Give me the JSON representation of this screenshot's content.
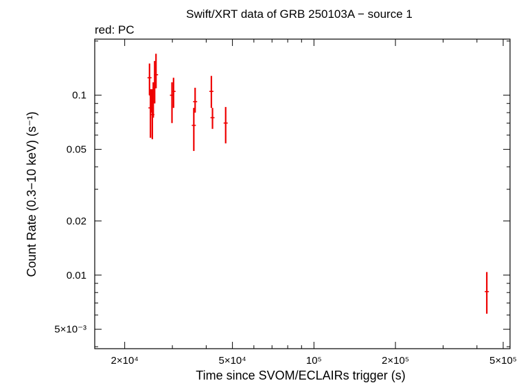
{
  "chart_data": {
    "type": "scatter",
    "title": "Swift/XRT data of GRB 250103A − source 1",
    "subtitle": "red: PC",
    "xlabel": "Time since SVOM/ECLAIRs trigger (s)",
    "ylabel": "Count Rate (0.3−10 keV) (s⁻¹)",
    "xscale": "log",
    "yscale": "log",
    "xlim": [
      15500,
      530000
    ],
    "ylim": [
      0.0039,
      0.205
    ],
    "grid": false,
    "legend": "none",
    "series_color": "#ee0000",
    "x_ticks": [
      {
        "value": 20000,
        "label": "2×10⁴"
      },
      {
        "value": 50000,
        "label": "5×10⁴"
      },
      {
        "value": 100000,
        "label": "10⁵"
      },
      {
        "value": 200000,
        "label": "2×10⁵"
      },
      {
        "value": 500000,
        "label": "5×10⁵"
      }
    ],
    "y_ticks": [
      {
        "value": 0.005,
        "label": "5×10⁻³"
      },
      {
        "value": 0.01,
        "label": "0.01"
      },
      {
        "value": 0.02,
        "label": "0.02"
      },
      {
        "value": 0.05,
        "label": "0.05"
      },
      {
        "value": 0.1,
        "label": "0.1"
      }
    ],
    "points": [
      {
        "x": 24700,
        "y": 0.125,
        "ylo": 0.1,
        "yhi": 0.15
      },
      {
        "x": 24900,
        "y": 0.085,
        "ylo": 0.058,
        "yhi": 0.108
      },
      {
        "x": 25100,
        "y": 0.1,
        "ylo": 0.08,
        "yhi": 0.108
      },
      {
        "x": 25300,
        "y": 0.078,
        "ylo": 0.057,
        "yhi": 0.108
      },
      {
        "x": 25500,
        "y": 0.092,
        "ylo": 0.075,
        "yhi": 0.118
      },
      {
        "x": 25800,
        "y": 0.11,
        "ylo": 0.09,
        "yhi": 0.155
      },
      {
        "x": 26100,
        "y": 0.13,
        "ylo": 0.11,
        "yhi": 0.17
      },
      {
        "x": 29900,
        "y": 0.1,
        "ylo": 0.07,
        "yhi": 0.118
      },
      {
        "x": 30300,
        "y": 0.105,
        "ylo": 0.085,
        "yhi": 0.125
      },
      {
        "x": 36000,
        "y": 0.068,
        "ylo": 0.049,
        "yhi": 0.085
      },
      {
        "x": 36400,
        "y": 0.092,
        "ylo": 0.08,
        "yhi": 0.11
      },
      {
        "x": 41800,
        "y": 0.105,
        "ylo": 0.085,
        "yhi": 0.128
      },
      {
        "x": 42200,
        "y": 0.075,
        "ylo": 0.065,
        "yhi": 0.085
      },
      {
        "x": 47200,
        "y": 0.07,
        "ylo": 0.054,
        "yhi": 0.086
      },
      {
        "x": 435000,
        "y": 0.0081,
        "ylo": 0.0061,
        "yhi": 0.0104
      }
    ]
  }
}
